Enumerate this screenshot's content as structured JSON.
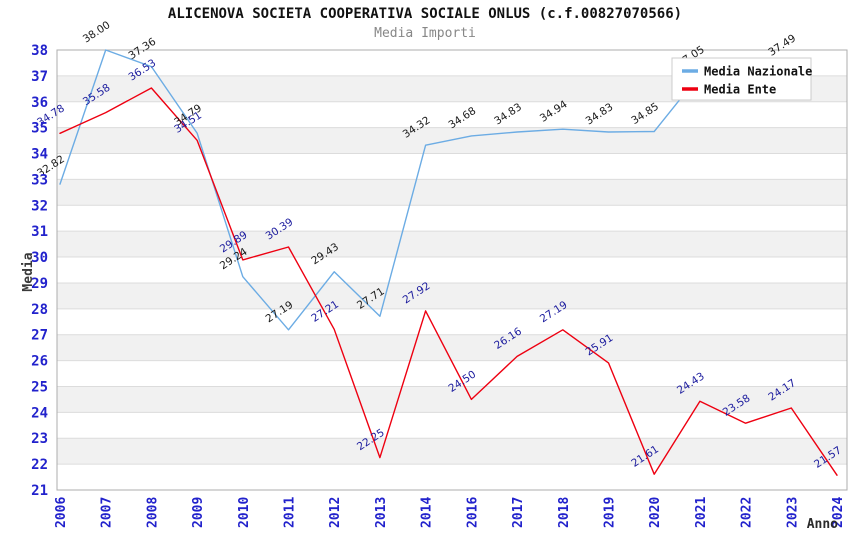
{
  "header": {
    "title": "ALICENOVA SOCIETA COOPERATIVA SOCIALE ONLUS (c.f.00827070566)",
    "subtitle": "Media Importi"
  },
  "chart_data": {
    "type": "line",
    "x": [
      "2006",
      "2007",
      "2008",
      "2009",
      "2010",
      "2011",
      "2012",
      "2013",
      "2014",
      "2016",
      "2017",
      "2018",
      "2019",
      "2020",
      "2021",
      "2022",
      "2023",
      "2024"
    ],
    "series": [
      {
        "name": "Media Nazionale",
        "color": "#6CACE4",
        "label_color": "#1a1a1a",
        "values": [
          32.82,
          38.0,
          37.36,
          34.79,
          29.24,
          27.19,
          29.43,
          27.71,
          34.32,
          34.68,
          34.83,
          34.94,
          34.83,
          34.85,
          37.05,
          null,
          37.49,
          null
        ]
      },
      {
        "name": "Media Ente",
        "color": "#EE0011",
        "label_color": "#1c1c9e",
        "values": [
          34.78,
          35.58,
          36.53,
          34.51,
          29.89,
          30.39,
          27.21,
          22.25,
          27.92,
          24.5,
          26.16,
          27.19,
          25.91,
          21.61,
          24.43,
          23.58,
          24.17,
          21.57
        ]
      }
    ],
    "xlabel": "Anno",
    "ylabel": "Media",
    "ylim": [
      21,
      38
    ],
    "y_tick_step": 1,
    "grid": true,
    "band_color": "#f1f1f1",
    "gridline_color": "#dcdcdc",
    "border_color": "#adadad",
    "tick_label_color": "#2222cc",
    "axis_title_color": "#3a3a3a",
    "legend_position": "top-right",
    "legend_bg": "#ffffff",
    "legend_border": "#cccccc",
    "legend_text_color": "#111111"
  }
}
